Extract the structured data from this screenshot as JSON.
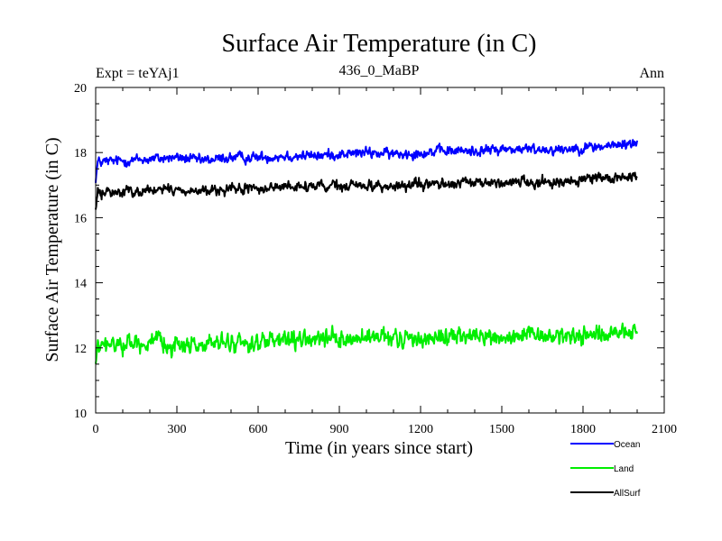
{
  "chart_data": {
    "type": "line",
    "title": "Surface Air Temperature (in C)",
    "subtitle_left": "Expt = teYAj1",
    "subtitle_center": "436_0_MaBP",
    "subtitle_right": "Ann",
    "xlabel": "Time (in years since start)",
    "ylabel": "Surface Air Temperature (in C)",
    "xlim": [
      0,
      2100
    ],
    "ylim": [
      10,
      20
    ],
    "x_ticks": [
      0,
      300,
      600,
      900,
      1200,
      1500,
      1800,
      2100
    ],
    "y_ticks": [
      10,
      12,
      14,
      16,
      18,
      20
    ],
    "x_minor_step": 100,
    "y_minor_step": 0.5,
    "x_range_data": [
      0,
      2000
    ],
    "legend_position": "bottom-right, below plot",
    "series": [
      {
        "name": "Ocean",
        "color": "#0000ff",
        "x_knots": [
          0,
          100,
          200,
          300,
          400,
          500,
          600,
          700,
          800,
          900,
          1000,
          1100,
          1200,
          1300,
          1400,
          1500,
          1600,
          1700,
          1800,
          1900,
          2000
        ],
        "trend": [
          17.7,
          17.75,
          17.8,
          17.85,
          17.75,
          17.85,
          17.85,
          17.9,
          17.9,
          17.95,
          18.0,
          17.95,
          18.0,
          18.05,
          18.05,
          18.1,
          18.1,
          18.1,
          18.15,
          18.2,
          18.3
        ],
        "noise_amplitude": 0.13
      },
      {
        "name": "Land",
        "color": "#00ee00",
        "x_knots": [
          0,
          100,
          200,
          300,
          400,
          500,
          600,
          700,
          800,
          900,
          1000,
          1100,
          1200,
          1300,
          1400,
          1500,
          1600,
          1700,
          1800,
          1900,
          2000
        ],
        "trend": [
          12.0,
          12.15,
          12.15,
          12.1,
          12.1,
          12.15,
          12.15,
          12.2,
          12.25,
          12.25,
          12.3,
          12.25,
          12.3,
          12.35,
          12.35,
          12.3,
          12.35,
          12.35,
          12.4,
          12.4,
          12.5
        ],
        "noise_amplitude": 0.22
      },
      {
        "name": "AllSurf",
        "color": "#000000",
        "x_knots": [
          0,
          100,
          200,
          300,
          400,
          500,
          600,
          700,
          800,
          900,
          1000,
          1100,
          1200,
          1300,
          1400,
          1500,
          1600,
          1700,
          1800,
          1900,
          2000
        ],
        "trend": [
          16.75,
          16.8,
          16.85,
          16.85,
          16.8,
          16.85,
          16.9,
          16.95,
          16.95,
          16.95,
          17.0,
          16.95,
          17.0,
          17.05,
          17.05,
          17.1,
          17.1,
          17.1,
          17.15,
          17.2,
          17.3
        ],
        "noise_amplitude": 0.13
      }
    ]
  }
}
